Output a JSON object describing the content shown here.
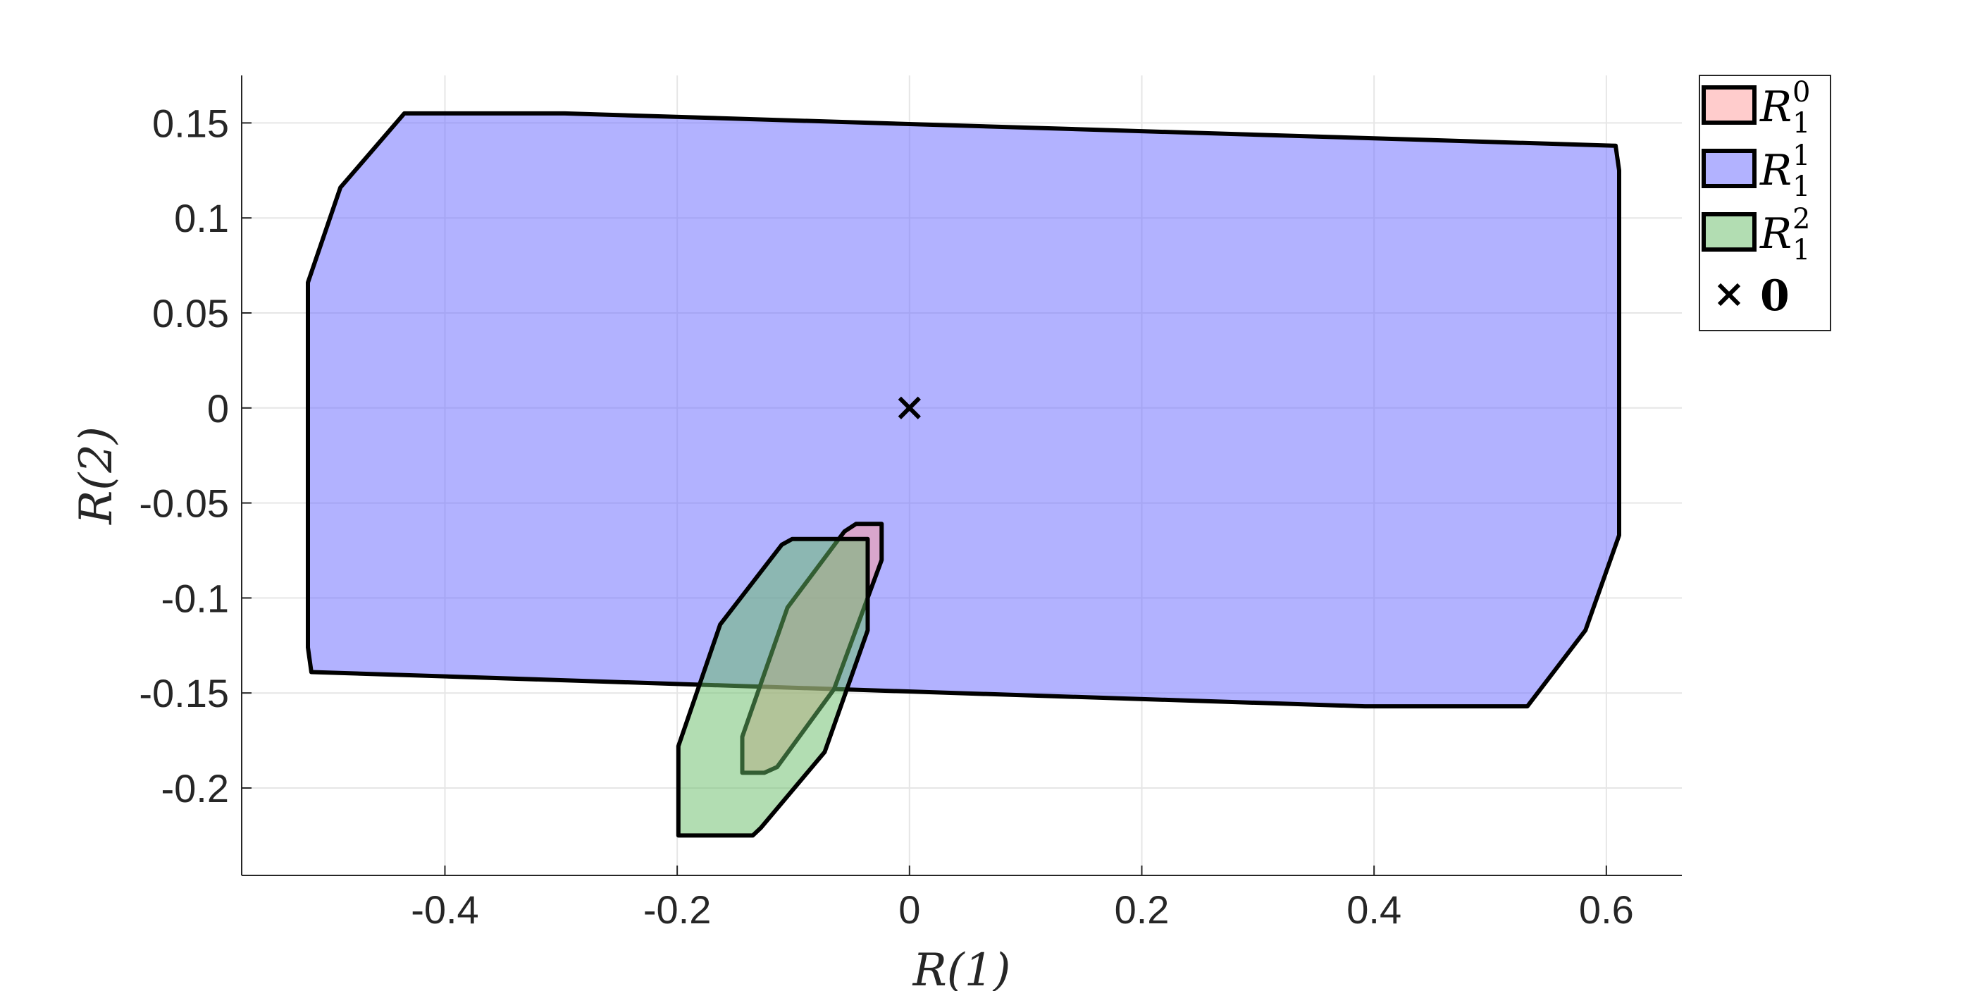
{
  "chart_data": {
    "type": "area",
    "xlabel": "R(1)",
    "ylabel": "R(2)",
    "xlim": [
      -0.575,
      0.665
    ],
    "ylim": [
      -0.246,
      0.175
    ],
    "xticks": [
      -0.4,
      -0.2,
      0,
      0.2,
      0.4,
      0.6
    ],
    "xtick_labels": [
      "-0.4",
      "-0.2",
      "0",
      "0.2",
      "0.4",
      "0.6"
    ],
    "yticks": [
      -0.2,
      -0.15,
      -0.1,
      -0.05,
      0,
      0.05,
      0.1,
      0.15
    ],
    "ytick_labels": [
      "-0.2",
      "-0.15",
      "-0.1",
      "-0.05",
      "0",
      "0.05",
      "0.1",
      "0.15"
    ],
    "grid": true,
    "legend_position": "outside top-right",
    "series": [
      {
        "name": "R_1^0",
        "legend_main": "R",
        "legend_sup": "0",
        "legend_sub": "1",
        "color": "#ff9999",
        "polygon": [
          [
            -0.046,
            -0.061
          ],
          [
            -0.024,
            -0.061
          ],
          [
            -0.024,
            -0.08
          ],
          [
            -0.065,
            -0.148
          ],
          [
            -0.114,
            -0.189
          ],
          [
            -0.125,
            -0.192
          ],
          [
            -0.144,
            -0.192
          ],
          [
            -0.144,
            -0.173
          ],
          [
            -0.105,
            -0.105
          ],
          [
            -0.056,
            -0.065
          ]
        ]
      },
      {
        "name": "R_1^1",
        "legend_main": "R",
        "legend_sup": "1",
        "legend_sub": "1",
        "color": "#6666ff",
        "polygon": [
          [
            -0.435,
            0.155
          ],
          [
            -0.297,
            0.155
          ],
          [
            0.608,
            0.138
          ],
          [
            0.611,
            0.125
          ],
          [
            0.611,
            -0.067
          ],
          [
            0.582,
            -0.117
          ],
          [
            0.532,
            -0.157
          ],
          [
            0.392,
            -0.157
          ],
          [
            -0.515,
            -0.139
          ],
          [
            -0.518,
            -0.126
          ],
          [
            -0.518,
            0.066
          ],
          [
            -0.49,
            0.116
          ]
        ]
      },
      {
        "name": "R_1^2",
        "legend_main": "R",
        "legend_sup": "2",
        "legend_sub": "1",
        "color": "#66bb66",
        "polygon": [
          [
            -0.101,
            -0.069
          ],
          [
            -0.036,
            -0.069
          ],
          [
            -0.036,
            -0.117
          ],
          [
            -0.073,
            -0.181
          ],
          [
            -0.128,
            -0.221
          ],
          [
            -0.135,
            -0.225
          ],
          [
            -0.199,
            -0.225
          ],
          [
            -0.199,
            -0.178
          ],
          [
            -0.163,
            -0.114
          ],
          [
            -0.11,
            -0.072
          ]
        ]
      }
    ],
    "marker": {
      "name": "0",
      "symbol": "×",
      "x": 0,
      "y": 0
    }
  }
}
